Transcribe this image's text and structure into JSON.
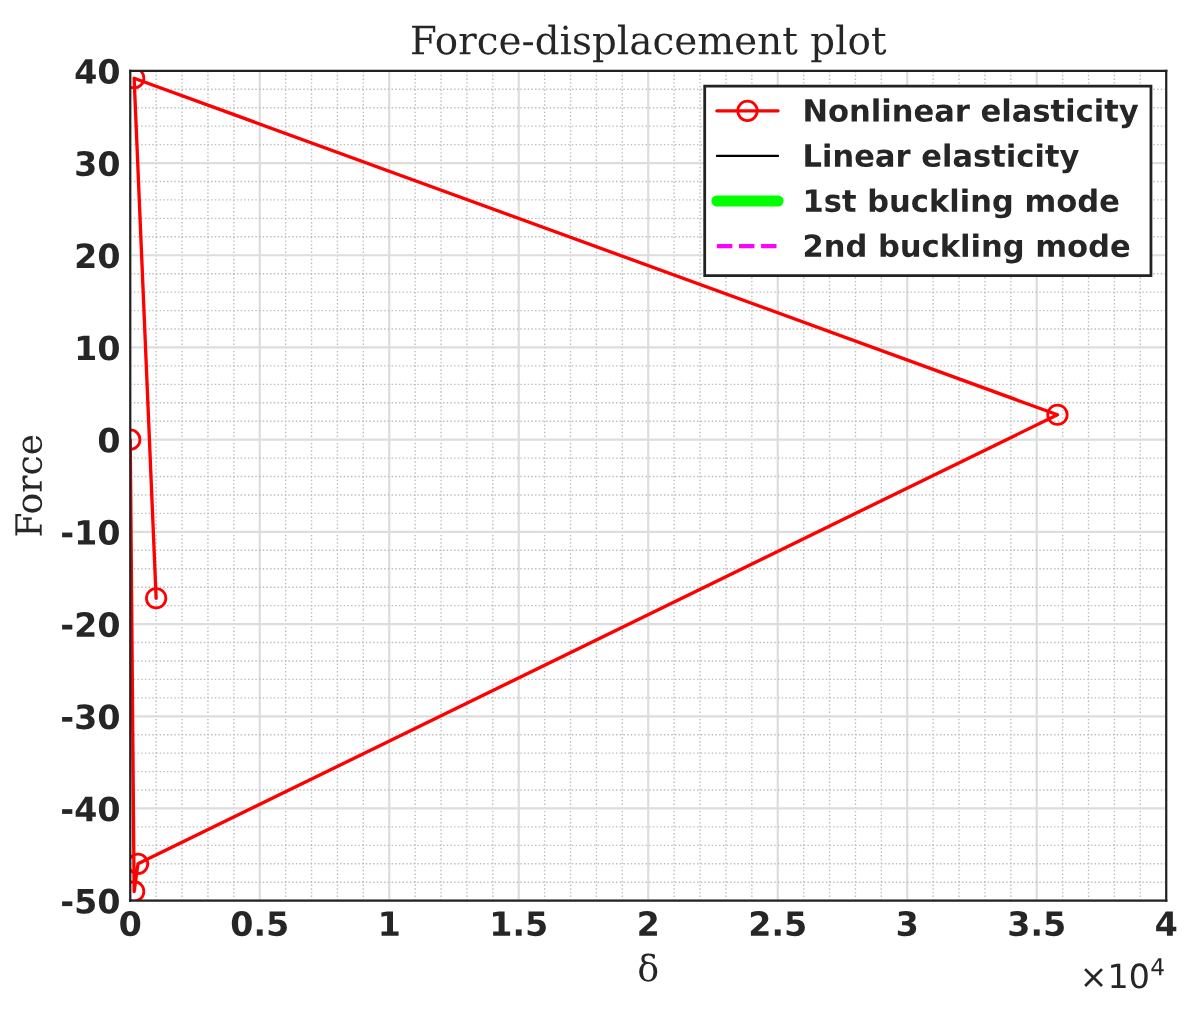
{
  "chart_data": {
    "type": "line",
    "title": "Force-displacement plot",
    "xlabel": "δ",
    "ylabel": "Force",
    "annotations": [
      "×10$^{4}$"
    ],
    "series": [
      {
        "name": "Nonlinear elasticity",
        "color": "#ff0000",
        "marker": "circle",
        "line_style": "solid",
        "x": [
          0,
          0.015,
          0.03,
          3.58,
          0.015,
          0.1
        ],
        "values": [
          0,
          -49,
          -46,
          2.7,
          39.2,
          -17.2
        ]
      },
      {
        "name": "Linear elasticity",
        "color": "#000000",
        "marker": "none",
        "line_style": "solid"
      },
      {
        "name": "1st buckling mode",
        "color": "#00ff00",
        "marker": "none",
        "line_style": "solid"
      },
      {
        "name": "2nd buckling mode",
        "color": "#ff00ff",
        "marker": "none",
        "line_style": "dashed"
      }
    ],
    "xlim": [
      0,
      4
    ],
    "ylim": [
      -50,
      40
    ],
    "xticks": [
      0,
      0.5,
      1,
      1.5,
      2,
      2.5,
      3,
      3.5,
      4
    ],
    "yticks": [
      -50,
      -40,
      -30,
      -20,
      -10,
      0,
      10,
      20,
      30,
      40
    ],
    "grid": true,
    "legend": "top right"
  }
}
